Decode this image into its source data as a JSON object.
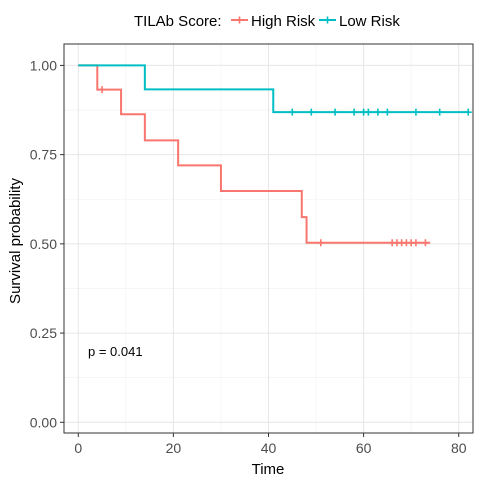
{
  "chart_data": {
    "type": "line",
    "xlabel": "Time",
    "ylabel": "Survival probability",
    "xlim": [
      -3,
      83
    ],
    "ylim": [
      -0.03,
      1.06
    ],
    "x_ticks": [
      0,
      20,
      40,
      60,
      80
    ],
    "y_ticks": [
      0.0,
      0.25,
      0.5,
      0.75,
      1.0
    ],
    "x_tick_labels": [
      "0",
      "20",
      "40",
      "60",
      "80"
    ],
    "y_tick_labels": [
      "0.00",
      "0.25",
      "0.50",
      "0.75",
      "1.00"
    ],
    "grid": true,
    "legend": {
      "title": "TILAb Score:",
      "position": "top"
    },
    "annotation": "p = 0.041",
    "series": [
      {
        "name": "High Risk",
        "color": "#F8766D",
        "steps": [
          {
            "x": 0,
            "y": 1.0
          },
          {
            "x": 4,
            "y": 0.932
          },
          {
            "x": 9,
            "y": 0.863
          },
          {
            "x": 14,
            "y": 0.79
          },
          {
            "x": 21,
            "y": 0.72
          },
          {
            "x": 30,
            "y": 0.648
          },
          {
            "x": 47,
            "y": 0.575
          },
          {
            "x": 48,
            "y": 0.503
          }
        ],
        "end_x": 74,
        "censored": [
          {
            "x": 5,
            "y": 0.932
          },
          {
            "x": 51,
            "y": 0.503
          },
          {
            "x": 66,
            "y": 0.503
          },
          {
            "x": 67,
            "y": 0.503
          },
          {
            "x": 68,
            "y": 0.503
          },
          {
            "x": 69,
            "y": 0.503
          },
          {
            "x": 70,
            "y": 0.503
          },
          {
            "x": 71,
            "y": 0.503
          },
          {
            "x": 73,
            "y": 0.503
          }
        ]
      },
      {
        "name": "Low Risk",
        "color": "#00BFC4",
        "steps": [
          {
            "x": 0,
            "y": 1.0
          },
          {
            "x": 14,
            "y": 0.933
          },
          {
            "x": 41,
            "y": 0.869
          }
        ],
        "end_x": 82,
        "censored": [
          {
            "x": 45,
            "y": 0.869
          },
          {
            "x": 49,
            "y": 0.869
          },
          {
            "x": 54,
            "y": 0.869
          },
          {
            "x": 58,
            "y": 0.869
          },
          {
            "x": 60,
            "y": 0.869
          },
          {
            "x": 61,
            "y": 0.869
          },
          {
            "x": 63,
            "y": 0.869
          },
          {
            "x": 65,
            "y": 0.869
          },
          {
            "x": 71,
            "y": 0.869
          },
          {
            "x": 76,
            "y": 0.869
          },
          {
            "x": 82,
            "y": 0.869
          }
        ]
      }
    ]
  }
}
